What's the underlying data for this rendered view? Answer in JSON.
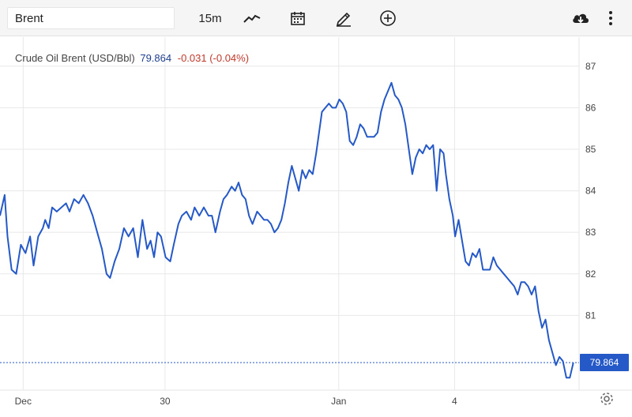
{
  "toolbar": {
    "symbol": "Brent",
    "interval": "15m",
    "icons": [
      "line-chart-icon",
      "calendar-icon",
      "pencil-icon",
      "plus-circle-icon",
      "download-cloud-icon",
      "more-vertical-icon"
    ]
  },
  "legend": {
    "name": "Crude Oil Brent (USD/Bbl)",
    "price": "79.864",
    "change": "-0.031 (-0.04%)"
  },
  "colors": {
    "line": "#2559c7",
    "price_tag": "#2559c7",
    "change_negative": "#c0392b",
    "grid": "#e8e8e8"
  },
  "price_tag": "79.864",
  "chart_data": {
    "type": "line",
    "ylim": [
      79.2,
      87.7
    ],
    "y_ticks": [
      81,
      82,
      83,
      84,
      85,
      86,
      87
    ],
    "y_tick_labels": [
      "81",
      "82",
      "83",
      "84",
      "85",
      "86",
      "87"
    ],
    "x_ticks": [
      {
        "label": "Dec",
        "t": 0.04
      },
      {
        "label": "30",
        "t": 0.285
      },
      {
        "label": "Jan",
        "t": 0.585
      },
      {
        "label": "4",
        "t": 0.785
      }
    ],
    "xlim": [
      0,
      1
    ],
    "grid": true,
    "last_value": 79.864,
    "series": [
      {
        "values": [
          [
            0.0,
            83.4
          ],
          [
            0.008,
            83.9
          ],
          [
            0.013,
            82.9
          ],
          [
            0.02,
            82.1
          ],
          [
            0.028,
            82.0
          ],
          [
            0.036,
            82.7
          ],
          [
            0.044,
            82.5
          ],
          [
            0.052,
            82.9
          ],
          [
            0.058,
            82.2
          ],
          [
            0.066,
            82.9
          ],
          [
            0.074,
            83.1
          ],
          [
            0.078,
            83.3
          ],
          [
            0.084,
            83.1
          ],
          [
            0.09,
            83.6
          ],
          [
            0.098,
            83.5
          ],
          [
            0.106,
            83.6
          ],
          [
            0.114,
            83.7
          ],
          [
            0.12,
            83.5
          ],
          [
            0.128,
            83.8
          ],
          [
            0.136,
            83.7
          ],
          [
            0.144,
            83.9
          ],
          [
            0.152,
            83.7
          ],
          [
            0.16,
            83.4
          ],
          [
            0.168,
            83.0
          ],
          [
            0.176,
            82.6
          ],
          [
            0.184,
            82.0
          ],
          [
            0.19,
            81.9
          ],
          [
            0.198,
            82.3
          ],
          [
            0.206,
            82.6
          ],
          [
            0.214,
            83.1
          ],
          [
            0.222,
            82.9
          ],
          [
            0.23,
            83.1
          ],
          [
            0.238,
            82.4
          ],
          [
            0.246,
            83.3
          ],
          [
            0.254,
            82.6
          ],
          [
            0.26,
            82.8
          ],
          [
            0.266,
            82.4
          ],
          [
            0.272,
            83.0
          ],
          [
            0.278,
            82.9
          ],
          [
            0.286,
            82.4
          ],
          [
            0.294,
            82.3
          ],
          [
            0.3,
            82.7
          ],
          [
            0.308,
            83.2
          ],
          [
            0.314,
            83.4
          ],
          [
            0.322,
            83.5
          ],
          [
            0.33,
            83.3
          ],
          [
            0.336,
            83.6
          ],
          [
            0.344,
            83.4
          ],
          [
            0.352,
            83.6
          ],
          [
            0.36,
            83.4
          ],
          [
            0.366,
            83.4
          ],
          [
            0.372,
            83.0
          ],
          [
            0.38,
            83.5
          ],
          [
            0.386,
            83.8
          ],
          [
            0.392,
            83.9
          ],
          [
            0.4,
            84.1
          ],
          [
            0.406,
            84.0
          ],
          [
            0.412,
            84.2
          ],
          [
            0.418,
            83.9
          ],
          [
            0.424,
            83.8
          ],
          [
            0.43,
            83.4
          ],
          [
            0.436,
            83.2
          ],
          [
            0.444,
            83.5
          ],
          [
            0.45,
            83.4
          ],
          [
            0.456,
            83.3
          ],
          [
            0.462,
            83.3
          ],
          [
            0.468,
            83.2
          ],
          [
            0.474,
            83.0
          ],
          [
            0.48,
            83.1
          ],
          [
            0.486,
            83.3
          ],
          [
            0.492,
            83.7
          ],
          [
            0.498,
            84.2
          ],
          [
            0.504,
            84.6
          ],
          [
            0.51,
            84.3
          ],
          [
            0.516,
            84.0
          ],
          [
            0.522,
            84.5
          ],
          [
            0.528,
            84.3
          ],
          [
            0.534,
            84.5
          ],
          [
            0.54,
            84.4
          ],
          [
            0.546,
            84.9
          ],
          [
            0.552,
            85.5
          ],
          [
            0.556,
            85.9
          ],
          [
            0.562,
            86.0
          ],
          [
            0.568,
            86.1
          ],
          [
            0.574,
            86.0
          ],
          [
            0.58,
            86.0
          ],
          [
            0.586,
            86.2
          ],
          [
            0.592,
            86.1
          ],
          [
            0.598,
            85.9
          ],
          [
            0.604,
            85.2
          ],
          [
            0.61,
            85.1
          ],
          [
            0.616,
            85.3
          ],
          [
            0.622,
            85.6
          ],
          [
            0.628,
            85.5
          ],
          [
            0.634,
            85.3
          ],
          [
            0.64,
            85.3
          ],
          [
            0.646,
            85.3
          ],
          [
            0.652,
            85.4
          ],
          [
            0.658,
            85.9
          ],
          [
            0.664,
            86.2
          ],
          [
            0.67,
            86.4
          ],
          [
            0.676,
            86.6
          ],
          [
            0.682,
            86.3
          ],
          [
            0.688,
            86.2
          ],
          [
            0.694,
            86.0
          ],
          [
            0.7,
            85.6
          ],
          [
            0.706,
            85.0
          ],
          [
            0.712,
            84.4
          ],
          [
            0.718,
            84.8
          ],
          [
            0.724,
            85.0
          ],
          [
            0.73,
            84.9
          ],
          [
            0.736,
            85.1
          ],
          [
            0.742,
            85.0
          ],
          [
            0.748,
            85.1
          ],
          [
            0.754,
            84.0
          ],
          [
            0.76,
            85.0
          ],
          [
            0.766,
            84.9
          ],
          [
            0.77,
            84.4
          ],
          [
            0.776,
            83.8
          ],
          [
            0.782,
            83.4
          ],
          [
            0.786,
            82.9
          ],
          [
            0.792,
            83.3
          ],
          [
            0.798,
            82.8
          ],
          [
            0.804,
            82.3
          ],
          [
            0.81,
            82.2
          ],
          [
            0.816,
            82.5
          ],
          [
            0.822,
            82.4
          ],
          [
            0.828,
            82.6
          ],
          [
            0.834,
            82.1
          ],
          [
            0.84,
            82.1
          ],
          [
            0.846,
            82.1
          ],
          [
            0.852,
            82.4
          ],
          [
            0.858,
            82.2
          ],
          [
            0.864,
            82.1
          ],
          [
            0.87,
            82.0
          ],
          [
            0.876,
            81.9
          ],
          [
            0.882,
            81.8
          ],
          [
            0.888,
            81.7
          ],
          [
            0.894,
            81.5
          ],
          [
            0.9,
            81.8
          ],
          [
            0.906,
            81.8
          ],
          [
            0.912,
            81.7
          ],
          [
            0.918,
            81.5
          ],
          [
            0.924,
            81.7
          ],
          [
            0.93,
            81.1
          ],
          [
            0.936,
            80.7
          ],
          [
            0.942,
            80.9
          ],
          [
            0.948,
            80.4
          ],
          [
            0.954,
            80.1
          ],
          [
            0.96,
            79.8
          ],
          [
            0.966,
            80.0
          ],
          [
            0.972,
            79.9
          ],
          [
            0.978,
            79.5
          ],
          [
            0.984,
            79.5
          ],
          [
            0.99,
            79.86
          ]
        ]
      }
    ]
  }
}
